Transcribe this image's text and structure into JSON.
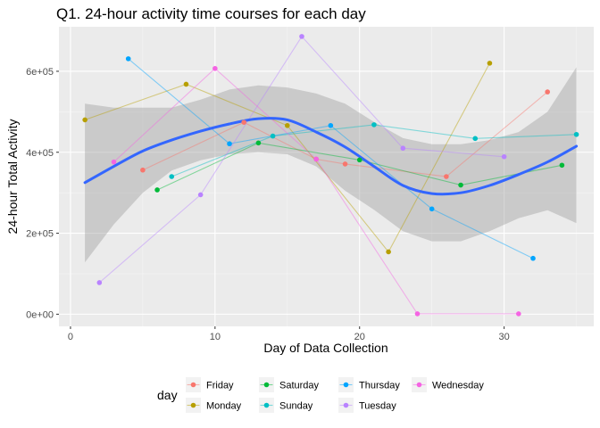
{
  "chart_data": {
    "type": "line",
    "title": "Q1. 24-hour activity time courses for each day",
    "xlabel": "Day of Data Collection",
    "ylabel": "24-hour Total Activity",
    "xlim": [
      -0.8,
      36.2
    ],
    "ylim": [
      -30000,
      710000
    ],
    "x_ticks": [
      0,
      10,
      20,
      30
    ],
    "x_tick_labels": [
      "0",
      "10",
      "20",
      "30"
    ],
    "y_ticks": [
      0,
      200000,
      400000,
      600000
    ],
    "y_tick_labels": [
      "0e+00",
      "2e+05",
      "4e+05",
      "6e+05"
    ],
    "grid": true,
    "legend": {
      "title": "day",
      "position": "bottom"
    },
    "series": [
      {
        "name": "Friday",
        "color": "#F8766D",
        "x": [
          5,
          12,
          17,
          19,
          26,
          33
        ],
        "y": [
          356000,
          474000,
          383000,
          371000,
          340000,
          549000
        ]
      },
      {
        "name": "Monday",
        "color": "#B79F00",
        "x": [
          1,
          8,
          15,
          22,
          29
        ],
        "y": [
          480000,
          568000,
          466000,
          154000,
          620000
        ]
      },
      {
        "name": "Saturday",
        "color": "#00BA38",
        "x": [
          6,
          13,
          20,
          27,
          34
        ],
        "y": [
          307000,
          423000,
          381000,
          319000,
          368000
        ]
      },
      {
        "name": "Sunday",
        "color": "#00BFC4",
        "x": [
          7,
          14,
          21,
          28,
          35
        ],
        "y": [
          340000,
          440000,
          468000,
          434000,
          444000
        ]
      },
      {
        "name": "Thursday",
        "color": "#00A5FF",
        "x": [
          4,
          11,
          18,
          25,
          32
        ],
        "y": [
          631000,
          421000,
          466000,
          260000,
          138000
        ]
      },
      {
        "name": "Tuesday",
        "color": "#B983FF",
        "x": [
          2,
          9,
          16,
          23,
          30
        ],
        "y": [
          78000,
          295000,
          686000,
          410000,
          389000
        ]
      },
      {
        "name": "Wednesday",
        "color": "#F564E3",
        "x": [
          3,
          10,
          17,
          24,
          31
        ],
        "y": [
          376000,
          607000,
          383000,
          1000,
          1000
        ]
      }
    ],
    "smooth": {
      "color": "#3366FF",
      "x": [
        1,
        3,
        5,
        7,
        9,
        11,
        13,
        15,
        17,
        19,
        21,
        23,
        25,
        27,
        29,
        31,
        33,
        35
      ],
      "y": [
        325000,
        365000,
        403000,
        430000,
        452000,
        470000,
        483000,
        480000,
        450000,
        413000,
        365000,
        318000,
        298000,
        300000,
        318000,
        345000,
        376000,
        415000
      ],
      "upper": [
        520000,
        510000,
        510000,
        510000,
        530000,
        555000,
        565000,
        560000,
        545000,
        520000,
        475000,
        435000,
        420000,
        420000,
        430000,
        450000,
        500000,
        610000
      ],
      "lower": [
        128000,
        222000,
        300000,
        355000,
        380000,
        395000,
        400000,
        395000,
        365000,
        305000,
        258000,
        205000,
        180000,
        180000,
        205000,
        237000,
        257000,
        225000
      ]
    }
  }
}
